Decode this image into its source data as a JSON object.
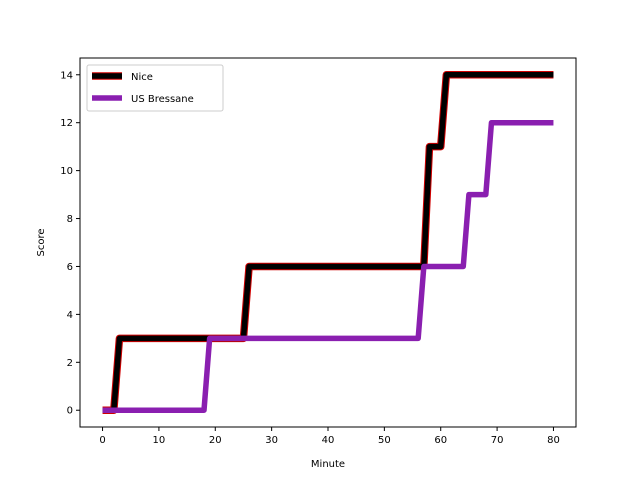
{
  "chart_data": {
    "type": "line",
    "title": "",
    "xlabel": "Minute",
    "ylabel": "Score",
    "xlim": [
      -4,
      84
    ],
    "ylim": [
      -0.7,
      14.7
    ],
    "xticks": [
      0,
      10,
      20,
      30,
      40,
      50,
      60,
      70,
      80
    ],
    "yticks": [
      0,
      2,
      4,
      6,
      8,
      10,
      12,
      14
    ],
    "grid": false,
    "legend_position": "upper-left",
    "series": [
      {
        "name": "Nice",
        "color": "#000000",
        "edge_color": "#d00000",
        "x": [
          0,
          2,
          3,
          25,
          26,
          57,
          58,
          60,
          61,
          80
        ],
        "y": [
          0,
          0,
          3,
          3,
          6,
          6,
          11,
          11,
          14,
          14
        ]
      },
      {
        "name": "US Bressane",
        "color": "#8a1fb0",
        "x": [
          0,
          18,
          19,
          56,
          57,
          64,
          65,
          68,
          69,
          80
        ],
        "y": [
          0,
          0,
          3,
          3,
          6,
          6,
          9,
          9,
          12,
          12
        ]
      }
    ]
  }
}
